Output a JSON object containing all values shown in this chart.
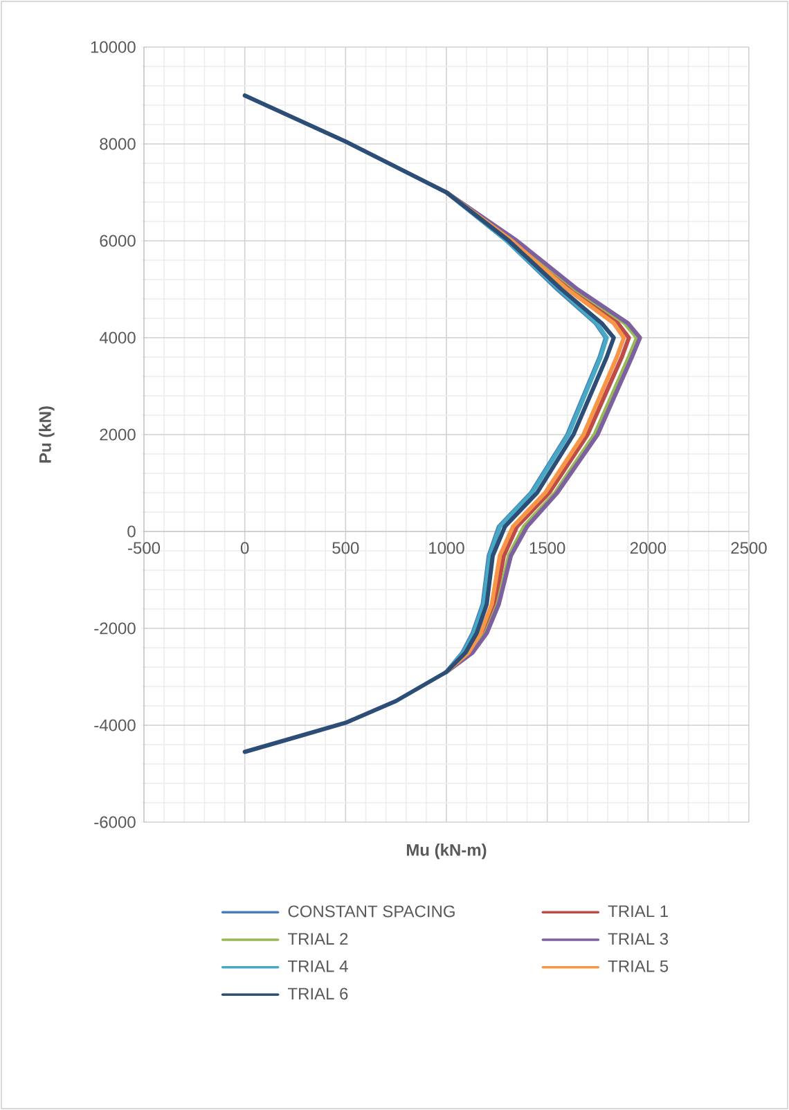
{
  "chart_data": {
    "type": "line",
    "xlabel": "Mu (kN-m)",
    "ylabel": "Pu (kN)",
    "xlim": [
      -500,
      2500
    ],
    "ylim": [
      -6000,
      10000
    ],
    "xticks": [
      -500,
      0,
      500,
      1000,
      1500,
      2000,
      2500
    ],
    "yticks": [
      -6000,
      -4000,
      -2000,
      0,
      2000,
      4000,
      6000,
      8000,
      10000
    ],
    "grid": true,
    "legend": "bottom",
    "line_style": "solid",
    "series": [
      {
        "name": "CONSTANT SPACING",
        "color": "#4a7ebb",
        "x": [
          1000,
          1300,
          1550,
          1740,
          1790,
          1760,
          1600,
          1420,
          1260,
          1210,
          1180,
          1130,
          1080,
          1000
        ],
        "values": [
          7000,
          6000,
          5000,
          4300,
          4000,
          3600,
          2000,
          800,
          100,
          -500,
          -1500,
          -2100,
          -2500,
          -2900
        ]
      },
      {
        "name": "TRIAL 1",
        "color": "#be4b48",
        "x": [
          1000,
          1330,
          1615,
          1850,
          1905,
          1870,
          1700,
          1510,
          1350,
          1285,
          1240,
          1185,
          1120,
          1000
        ],
        "values": [
          7000,
          6000,
          5000,
          4300,
          4000,
          3600,
          2000,
          800,
          100,
          -500,
          -1500,
          -2100,
          -2500,
          -2900
        ]
      },
      {
        "name": "TRIAL 2",
        "color": "#98b954",
        "x": [
          1000,
          1345,
          1640,
          1885,
          1945,
          1905,
          1735,
          1540,
          1385,
          1310,
          1255,
          1195,
          1125,
          1000
        ],
        "values": [
          7000,
          6000,
          5000,
          4300,
          4000,
          3600,
          2000,
          800,
          100,
          -500,
          -1500,
          -2100,
          -2500,
          -2900
        ]
      },
      {
        "name": "TRIAL 3",
        "color": "#7d60a0",
        "x": [
          1000,
          1350,
          1650,
          1900,
          1960,
          1920,
          1750,
          1550,
          1400,
          1320,
          1260,
          1200,
          1130,
          1000
        ],
        "values": [
          7000,
          6000,
          5000,
          4300,
          4000,
          3600,
          2000,
          800,
          100,
          -500,
          -1500,
          -2100,
          -2500,
          -2900
        ]
      },
      {
        "name": "TRIAL 4",
        "color": "#46aac5",
        "x": [
          1000,
          1300,
          1560,
          1745,
          1795,
          1765,
          1605,
          1425,
          1265,
          1215,
          1185,
          1135,
          1085,
          1000
        ],
        "values": [
          7000,
          6000,
          5000,
          4300,
          4000,
          3600,
          2000,
          800,
          100,
          -500,
          -1500,
          -2100,
          -2500,
          -2900
        ]
      },
      {
        "name": "TRIAL 5",
        "color": "#f79646",
        "x": [
          1000,
          1325,
          1600,
          1830,
          1880,
          1845,
          1680,
          1490,
          1330,
          1265,
          1225,
          1170,
          1110,
          1000
        ],
        "values": [
          7000,
          6000,
          5000,
          4300,
          4000,
          3600,
          2000,
          800,
          100,
          -500,
          -1500,
          -2100,
          -2500,
          -2900
        ]
      },
      {
        "name": "TRIAL 6",
        "color": "#2c4d75",
        "x": [
          0,
          500,
          1000,
          1310,
          1570,
          1770,
          1830,
          1795,
          1630,
          1450,
          1290,
          1230,
          1200,
          1150,
          1095,
          1000,
          750,
          500,
          250,
          0
        ],
        "values": [
          9000,
          8050,
          7000,
          6000,
          5000,
          4300,
          4000,
          3600,
          2000,
          800,
          100,
          -500,
          -1500,
          -2100,
          -2500,
          -2900,
          -3500,
          -3950,
          -4250,
          -4550
        ]
      }
    ]
  }
}
